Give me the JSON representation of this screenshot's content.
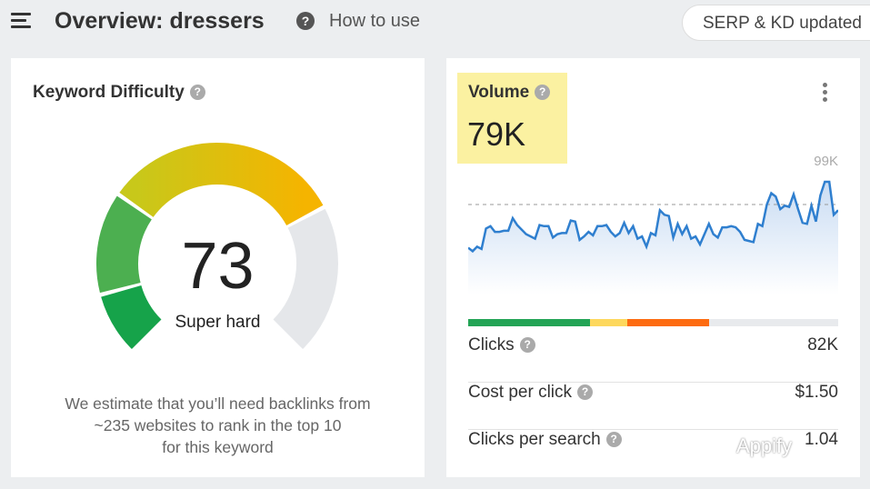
{
  "header": {
    "title": "Overview: dressers",
    "help_icon": "question-icon",
    "how_to_use": "How to use",
    "serp_status": "SERP & KD updated"
  },
  "keyword_difficulty": {
    "title": "Keyword Difficulty",
    "score": "73",
    "score_value": 73,
    "label": "Super hard",
    "estimate_lines": [
      "We estimate that you’ll need backlinks from",
      "~235 websites to rank in the top 10",
      "for this keyword"
    ],
    "colors": {
      "dark_green": "#16a34a",
      "green": "#4caf50",
      "yellow": "#c8c81a",
      "orange": "#f5b400",
      "gray": "#e5e7ea"
    }
  },
  "volume": {
    "title": "Volume",
    "value": "79K",
    "menu_icon": "more-vertical-icon",
    "chart_max_label": "99K",
    "chart_data": {
      "type": "area",
      "ylim": [
        0,
        99
      ],
      "unit": "K",
      "average": 79,
      "color": "#2f7fcf",
      "values": [
        41,
        38,
        42,
        40,
        58,
        60,
        55,
        55,
        56,
        56,
        67,
        61,
        57,
        53,
        51,
        49,
        61,
        60,
        60,
        50,
        53,
        54,
        54,
        65,
        64,
        48,
        51,
        55,
        52,
        60,
        60,
        61,
        55,
        51,
        54,
        63,
        54,
        60,
        49,
        51,
        42,
        54,
        52,
        74,
        70,
        69,
        50,
        62,
        53,
        60,
        49,
        51,
        44,
        53,
        62,
        53,
        50,
        59,
        59,
        60,
        59,
        55,
        48,
        47,
        46,
        62,
        60,
        79,
        89,
        86,
        75,
        78,
        77,
        88,
        75,
        63,
        62,
        78,
        64,
        87,
        99,
        99,
        70,
        74
      ]
    },
    "intent_bar": [
      {
        "color": "#23a455",
        "share": 33
      },
      {
        "color": "#fdd85d",
        "share": 10
      },
      {
        "color": "#fd6b10",
        "share": 22
      },
      {
        "color": "#e8eaed",
        "share": 35
      }
    ],
    "metrics": [
      {
        "label": "Clicks",
        "value": "82K"
      },
      {
        "label": "Cost per click",
        "value": "$1.50"
      },
      {
        "label": "Clicks per search",
        "value": "1.04"
      }
    ]
  },
  "watermark": "Appify"
}
